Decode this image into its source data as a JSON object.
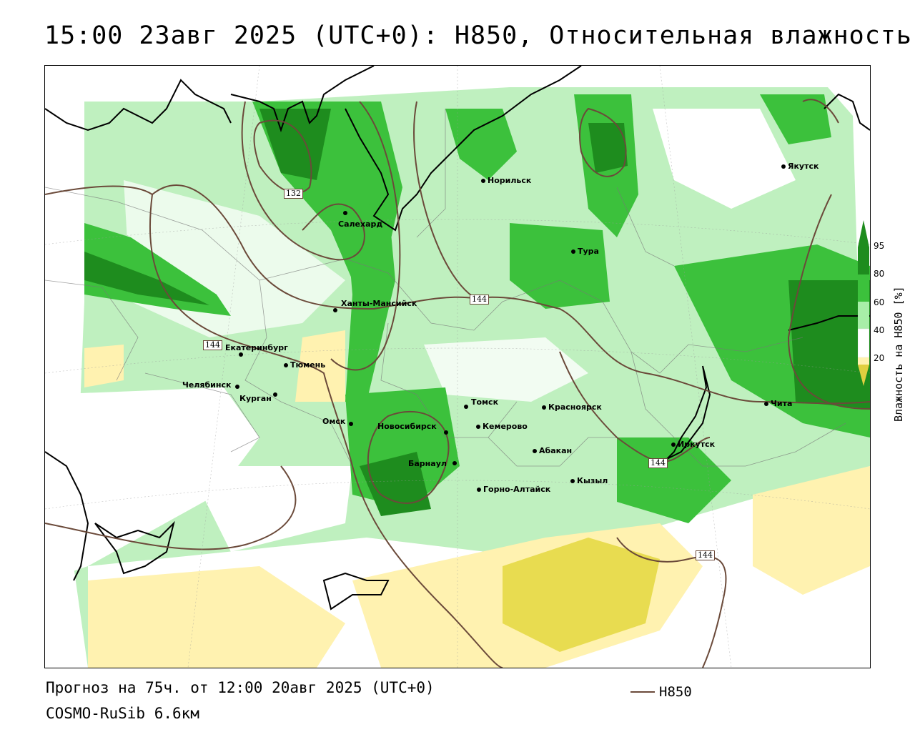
{
  "title": "15:00 23авг 2025 (UTC+0): H850, Относительная влажность",
  "footer": {
    "forecast": "Прогноз на 75ч. от 12:00 20авг 2025 (UTC+0)",
    "model": "COSMO-RuSib 6.6км",
    "legend_line_label": "H850"
  },
  "colorbar": {
    "title": "Влажность на H850 [%]",
    "ticks": [
      "95",
      "80",
      "60",
      "40",
      "20"
    ],
    "colors": {
      "c95": "#1e8c1e",
      "c80": "#3cc13c",
      "c60": "#a8eea8",
      "c40": "#ffffff",
      "c20": "#fff2b0",
      "c0": "#e0d040"
    }
  },
  "contour_color": "#6b4a3a",
  "contour_labels": [
    "132",
    "144",
    "144",
    "144",
    "144"
  ],
  "cities": [
    {
      "name": "Якутск"
    },
    {
      "name": "Норильск"
    },
    {
      "name": "Салехард"
    },
    {
      "name": "Тура"
    },
    {
      "name": "Ханты-Мансийск"
    },
    {
      "name": "Екатеринбург"
    },
    {
      "name": "Тюмень"
    },
    {
      "name": "Челябинск"
    },
    {
      "name": "Курган"
    },
    {
      "name": "Томск"
    },
    {
      "name": "Красноярск"
    },
    {
      "name": "Омск"
    },
    {
      "name": "Новосибирск"
    },
    {
      "name": "Кемерово"
    },
    {
      "name": "Абакан"
    },
    {
      "name": "Барнаул"
    },
    {
      "name": "Кызыл"
    },
    {
      "name": "Горно-Алтайск"
    },
    {
      "name": "Иркутск"
    },
    {
      "name": "Чита"
    }
  ]
}
